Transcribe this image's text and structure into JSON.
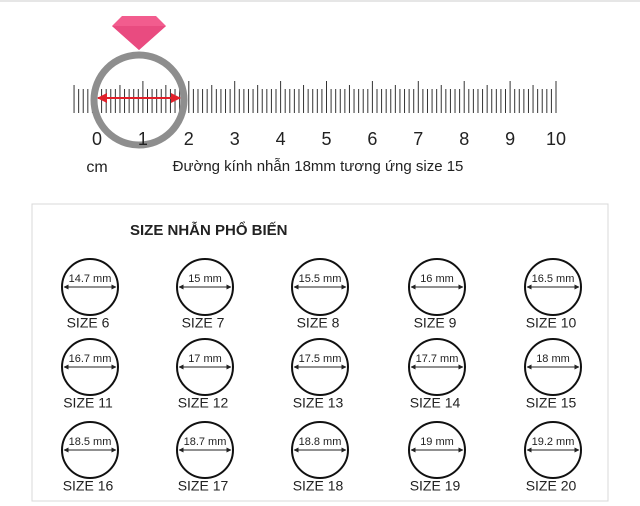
{
  "ruler": {
    "labels": [
      0,
      1,
      2,
      3,
      4,
      5,
      6,
      7,
      8,
      9,
      10
    ],
    "unit": "cm",
    "caption": "Đường kính nhẫn 18mm tương ứng size 15"
  },
  "card": {
    "title": "SIZE NHẪN PHỔ BIẾN",
    "rings": [
      {
        "diameter": "14.7 mm",
        "size": "SIZE 6"
      },
      {
        "diameter": "15 mm",
        "size": "SIZE 7"
      },
      {
        "diameter": "15.5 mm",
        "size": "SIZE 8"
      },
      {
        "diameter": "16 mm",
        "size": "SIZE 9"
      },
      {
        "diameter": "16.5 mm",
        "size": "SIZE 10"
      },
      {
        "diameter": "16.7 mm",
        "size": "SIZE 11"
      },
      {
        "diameter": "17 mm",
        "size": "SIZE 12"
      },
      {
        "diameter": "17.5 mm",
        "size": "SIZE 13"
      },
      {
        "diameter": "17.7 mm",
        "size": "SIZE 14"
      },
      {
        "diameter": "18 mm",
        "size": "SIZE 15"
      },
      {
        "diameter": "18.5 mm",
        "size": "SIZE 16"
      },
      {
        "diameter": "18.7 mm",
        "size": "SIZE 17"
      },
      {
        "diameter": "18.8 mm",
        "size": "SIZE 18"
      },
      {
        "diameter": "19 mm",
        "size": "SIZE 19"
      },
      {
        "diameter": "19.2 mm",
        "size": "SIZE 20"
      }
    ]
  }
}
